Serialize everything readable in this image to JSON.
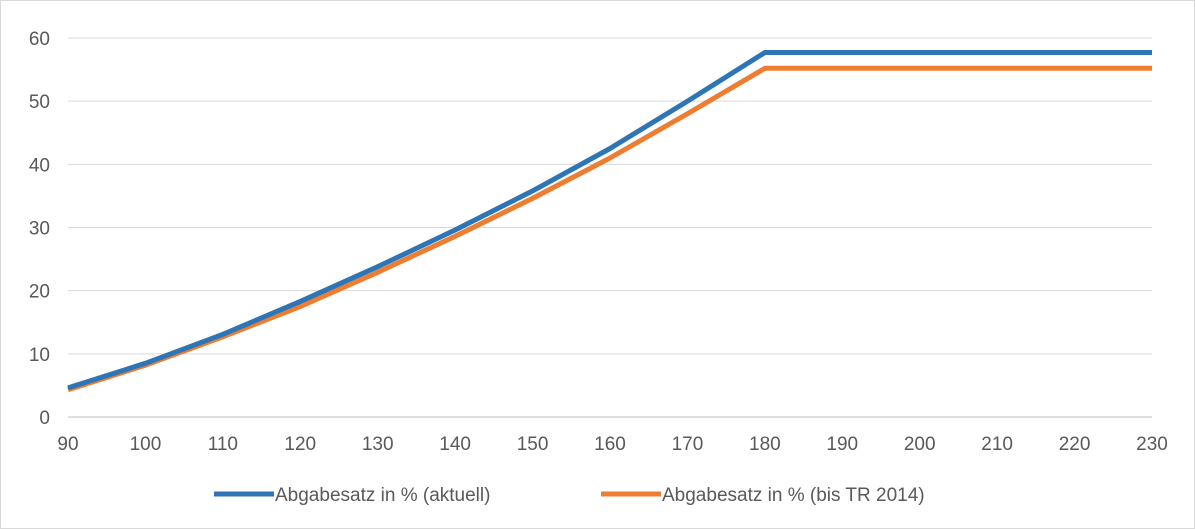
{
  "chart_data": {
    "type": "line",
    "title": "",
    "xlabel": "",
    "ylabel": "",
    "xlim": [
      90,
      230
    ],
    "ylim": [
      0,
      60
    ],
    "x_ticks": [
      90,
      100,
      110,
      120,
      130,
      140,
      150,
      160,
      170,
      180,
      190,
      200,
      210,
      220,
      230
    ],
    "y_ticks": [
      0,
      10,
      20,
      30,
      40,
      50,
      60
    ],
    "grid": "horizontal",
    "legend_position": "bottom",
    "series": [
      {
        "name": "Abgabesatz in % (aktuell)",
        "color": "#2e75b6",
        "x": [
          90,
          100,
          110,
          120,
          130,
          140,
          150,
          160,
          170,
          180,
          190,
          200,
          210,
          220,
          230
        ],
        "y": [
          4.6,
          8.5,
          13.1,
          18.3,
          23.8,
          29.6,
          35.8,
          42.5,
          50.0,
          57.7,
          57.7,
          57.7,
          57.7,
          57.7,
          57.7
        ]
      },
      {
        "name": "Abgabesatz in % (bis TR 2014)",
        "color": "#ed7d31",
        "x": [
          90,
          100,
          110,
          120,
          130,
          140,
          150,
          160,
          170,
          180,
          190,
          200,
          210,
          220,
          230
        ],
        "y": [
          4.3,
          8.2,
          12.7,
          17.5,
          22.9,
          28.6,
          34.6,
          41.0,
          48.0,
          55.2,
          55.2,
          55.2,
          55.2,
          55.2,
          55.2
        ]
      }
    ]
  }
}
